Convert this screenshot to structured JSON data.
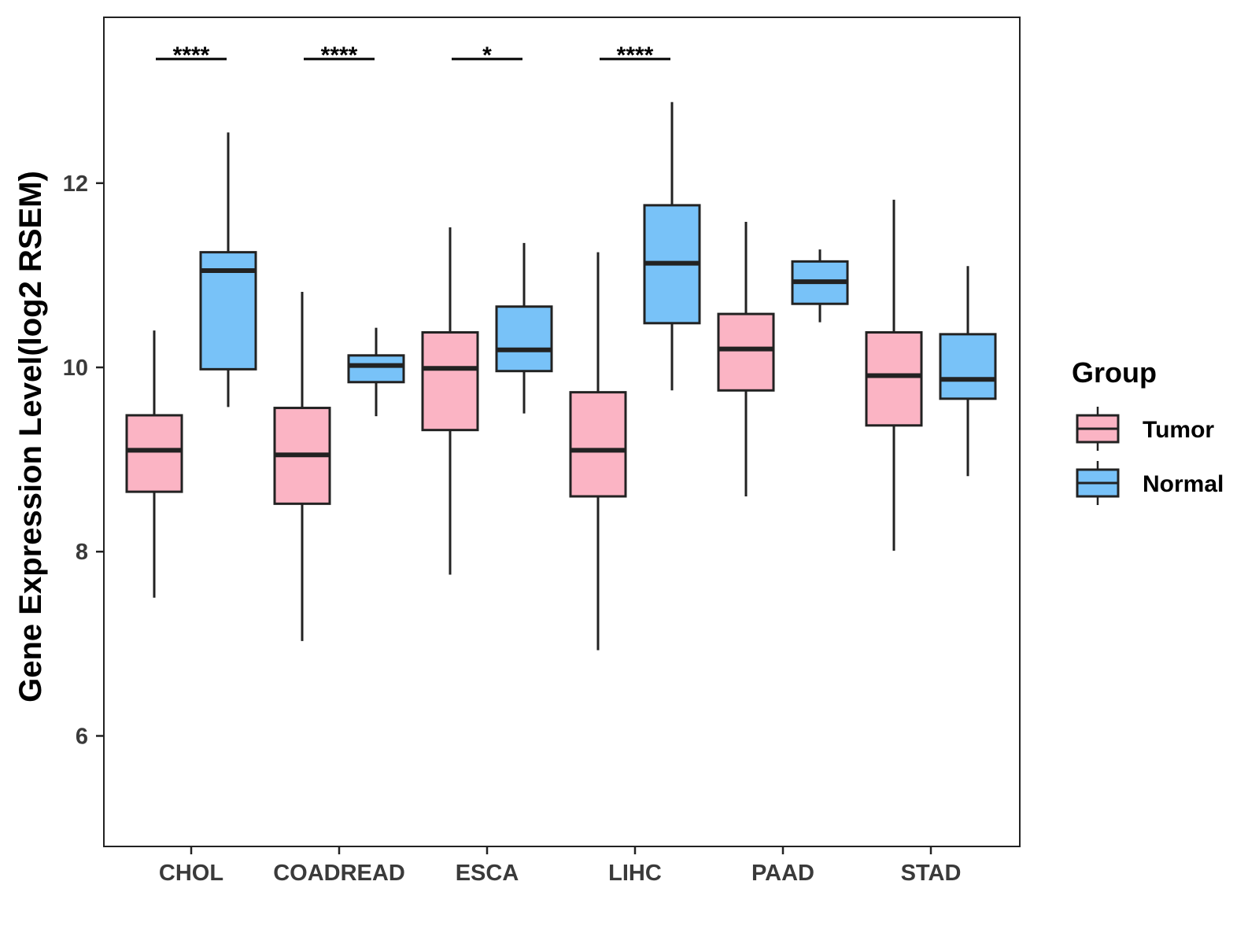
{
  "chart_data": {
    "type": "boxplot",
    "xlabel": "",
    "ylabel": "Gene Expression Level(log2 RSEM)",
    "ylim": [
      4.8,
      13.8
    ],
    "yticks": [
      6,
      8,
      10,
      12
    ],
    "categories": [
      "CHOL",
      "COADREAD",
      "ESCA",
      "LIHC",
      "PAAD",
      "STAD"
    ],
    "legend": {
      "title": "Group",
      "position": "right",
      "entries": [
        {
          "name": "Tumor",
          "color": "#FBB4C4"
        },
        {
          "name": "Normal",
          "color": "#78C2F8"
        }
      ]
    },
    "series": [
      {
        "name": "Tumor",
        "color": "#FBB4C4",
        "boxes": [
          {
            "category": "CHOL",
            "whisker_low": 7.5,
            "q1": 8.65,
            "median": 9.1,
            "q3": 9.48,
            "whisker_high": 10.4
          },
          {
            "category": "COADREAD",
            "whisker_low": 7.03,
            "q1": 8.52,
            "median": 9.05,
            "q3": 9.56,
            "whisker_high": 10.82
          },
          {
            "category": "ESCA",
            "whisker_low": 7.75,
            "q1": 9.32,
            "median": 9.99,
            "q3": 10.38,
            "whisker_high": 11.52
          },
          {
            "category": "LIHC",
            "whisker_low": 6.93,
            "q1": 8.6,
            "median": 9.1,
            "q3": 9.73,
            "whisker_high": 11.25
          },
          {
            "category": "PAAD",
            "whisker_low": 8.6,
            "q1": 9.75,
            "median": 10.2,
            "q3": 10.58,
            "whisker_high": 11.58
          },
          {
            "category": "STAD",
            "whisker_low": 8.01,
            "q1": 9.37,
            "median": 9.91,
            "q3": 10.38,
            "whisker_high": 11.82
          }
        ]
      },
      {
        "name": "Normal",
        "color": "#78C2F8",
        "boxes": [
          {
            "category": "CHOL",
            "whisker_low": 9.57,
            "q1": 9.98,
            "median": 11.05,
            "q3": 11.25,
            "whisker_high": 12.55
          },
          {
            "category": "COADREAD",
            "whisker_low": 9.47,
            "q1": 9.84,
            "median": 10.02,
            "q3": 10.13,
            "whisker_high": 10.43
          },
          {
            "category": "ESCA",
            "whisker_low": 9.5,
            "q1": 9.96,
            "median": 10.19,
            "q3": 10.66,
            "whisker_high": 11.35
          },
          {
            "category": "LIHC",
            "whisker_low": 9.75,
            "q1": 10.48,
            "median": 11.13,
            "q3": 11.76,
            "whisker_high": 12.88
          },
          {
            "category": "PAAD",
            "whisker_low": 10.49,
            "q1": 10.69,
            "median": 10.93,
            "q3": 11.15,
            "whisker_high": 11.28
          },
          {
            "category": "STAD",
            "whisker_low": 8.82,
            "q1": 9.66,
            "median": 9.87,
            "q3": 10.36,
            "whisker_high": 11.1
          }
        ]
      }
    ],
    "significance": [
      {
        "category": "CHOL",
        "label": "****"
      },
      {
        "category": "COADREAD",
        "label": "****"
      },
      {
        "category": "ESCA",
        "label": "*"
      },
      {
        "category": "LIHC",
        "label": "****"
      }
    ]
  }
}
